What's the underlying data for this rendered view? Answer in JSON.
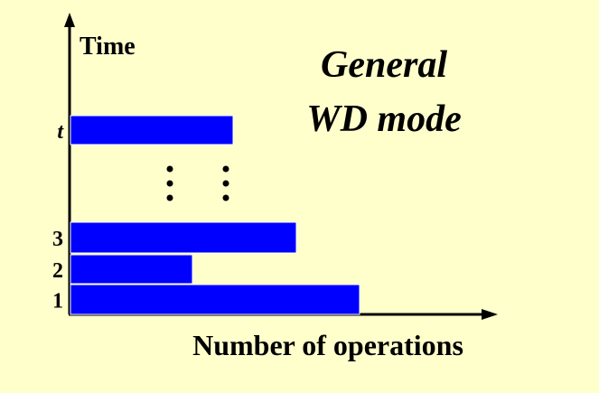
{
  "title": {
    "line1": "General",
    "line2": "WD mode"
  },
  "axes": {
    "y_label": "Time",
    "x_label": "Number of operations"
  },
  "chart_data": {
    "type": "bar",
    "orientation": "horizontal",
    "categories": [
      "1",
      "2",
      "3",
      "t"
    ],
    "values": [
      3.2,
      1.35,
      2.5,
      1.8
    ],
    "gap_between": [
      "3",
      "t"
    ],
    "ellipsis": ":  :"
  },
  "colors": {
    "background": "#ffffcc",
    "bar": "#0000ff",
    "axis": "#000000"
  }
}
